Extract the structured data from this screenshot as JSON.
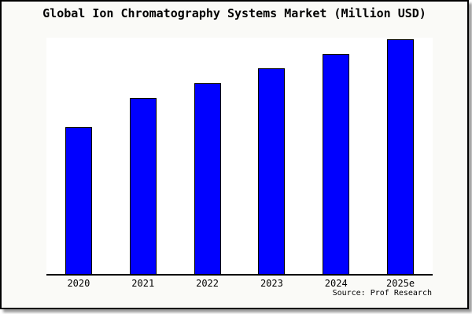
{
  "page": {
    "background": "#fafaf7",
    "frame_border_color": "#000000",
    "plot_background": "#ffffff"
  },
  "chart_data": {
    "type": "bar",
    "title": "Global Ion Chromatography Systems Market (Million USD)",
    "categories": [
      "2020",
      "2021",
      "2022",
      "2023",
      "2024",
      "2025e"
    ],
    "values": [
      188,
      225,
      244,
      263,
      281,
      300
    ],
    "values_note": "no y-axis or data labels shown; values estimated from relative bar heights, max bar normalized to 300",
    "ylim": [
      0,
      303
    ],
    "xlabel": "",
    "ylabel": "",
    "grid": false,
    "legend": false,
    "y_axis_shown": false,
    "bar_color": "#0000ff",
    "bar_border_color": "#000000"
  },
  "source": {
    "text": "Source: Prof Research"
  }
}
